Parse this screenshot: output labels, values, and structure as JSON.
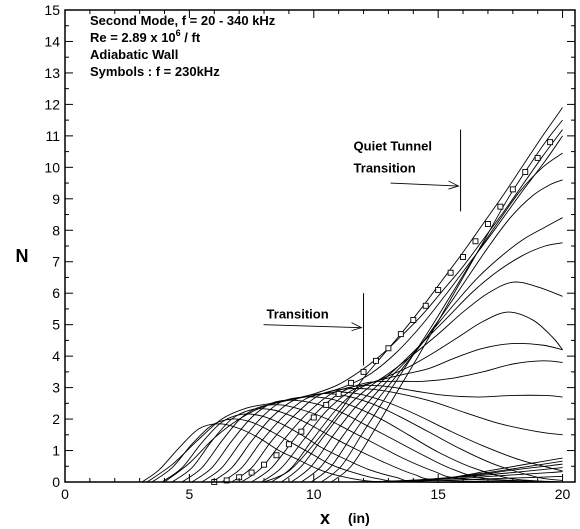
{
  "chart_data": {
    "type": "line",
    "xlabel": "x",
    "xunit": "(in)",
    "ylabel": "N",
    "xlim": [
      0,
      20.5
    ],
    "ylim": [
      0,
      15
    ],
    "xticks": [
      0,
      5,
      10,
      15,
      20
    ],
    "yticks": [
      0,
      1,
      2,
      3,
      4,
      5,
      6,
      7,
      8,
      9,
      10,
      11,
      12,
      13,
      14,
      15
    ],
    "grid": false,
    "legend_text": {
      "line1_prefix": "Second Mode, f = 20 - 340 kHz",
      "re_prefix": "Re = 2.89 x 10",
      "re_exp": "6",
      "re_suffix": " / ft",
      "line3": "Adiabatic Wall",
      "line4": "Symbols : f = 230kHz"
    },
    "annotations": [
      {
        "text": "Transition",
        "x": 12.0
      },
      {
        "line1": "Quiet Tunnel",
        "line2": "Transition",
        "x": 15.9
      }
    ],
    "symbol_series": {
      "name": "f = 230kHz",
      "marker": "square",
      "x": [
        6.0,
        6.5,
        7.0,
        7.5,
        8.0,
        8.5,
        9.0,
        9.5,
        10.0,
        10.5,
        11.0,
        11.5,
        12.0,
        12.5,
        13.0,
        13.5,
        14.0,
        14.5,
        15.0,
        15.5,
        16.0,
        16.5,
        17.0,
        17.5,
        18.0,
        18.5,
        19.0,
        19.5
      ],
      "y": [
        0.0,
        0.05,
        0.15,
        0.3,
        0.55,
        0.85,
        1.2,
        1.6,
        2.05,
        2.45,
        2.8,
        3.15,
        3.5,
        3.85,
        4.25,
        4.7,
        5.15,
        5.6,
        6.1,
        6.65,
        7.15,
        7.65,
        8.2,
        8.75,
        9.3,
        9.85,
        10.3,
        10.8
      ]
    },
    "series": [
      {
        "x": [
          3.1,
          3.8,
          4.6,
          5.4,
          6.2,
          7.0,
          7.8,
          8.6,
          9.4,
          10.2,
          11.0,
          12.0,
          13.0,
          15.0,
          20.0
        ],
        "y": [
          0,
          0.4,
          1.1,
          1.7,
          1.85,
          1.7,
          1.4,
          1.0,
          0.7,
          0.4,
          0.2,
          0.05,
          0,
          0,
          0
        ]
      },
      {
        "x": [
          3.5,
          4.3,
          5.1,
          5.9,
          6.7,
          7.5,
          8.3,
          9.1,
          9.9,
          10.7,
          11.6,
          12.6,
          14.0,
          20.0
        ],
        "y": [
          0,
          0.45,
          1.2,
          1.8,
          2.0,
          1.9,
          1.6,
          1.25,
          0.9,
          0.55,
          0.3,
          0.1,
          0,
          0
        ]
      },
      {
        "x": [
          3.9,
          4.7,
          5.5,
          6.3,
          7.1,
          7.9,
          8.7,
          9.5,
          10.3,
          11.2,
          12.2,
          13.3,
          14.5,
          20.0
        ],
        "y": [
          0,
          0.45,
          1.25,
          1.9,
          2.15,
          2.1,
          1.85,
          1.5,
          1.1,
          0.75,
          0.4,
          0.15,
          0,
          0
        ]
      },
      {
        "x": [
          4.3,
          5.1,
          5.9,
          6.7,
          7.5,
          8.3,
          9.1,
          9.9,
          10.8,
          11.8,
          12.9,
          14.0,
          15.2,
          20.0
        ],
        "y": [
          0,
          0.45,
          1.3,
          2.0,
          2.3,
          2.3,
          2.1,
          1.8,
          1.4,
          1.0,
          0.6,
          0.25,
          0.05,
          0
        ]
      },
      {
        "x": [
          4.7,
          5.5,
          6.3,
          7.1,
          7.9,
          8.7,
          9.5,
          10.4,
          11.4,
          12.5,
          13.6,
          14.8,
          16.0,
          20.0
        ],
        "y": [
          0,
          0.45,
          1.3,
          2.05,
          2.4,
          2.45,
          2.3,
          2.05,
          1.65,
          1.2,
          0.75,
          0.35,
          0.1,
          0
        ]
      },
      {
        "x": [
          5.1,
          5.9,
          6.7,
          7.5,
          8.3,
          9.1,
          10.0,
          11.0,
          12.0,
          13.2,
          14.4,
          15.6,
          17.0,
          20.0
        ],
        "y": [
          0,
          0.45,
          1.3,
          2.05,
          2.5,
          2.6,
          2.5,
          2.25,
          1.85,
          1.35,
          0.85,
          0.4,
          0.1,
          0
        ]
      },
      {
        "x": [
          5.5,
          6.3,
          7.1,
          7.9,
          8.7,
          9.6,
          10.6,
          11.6,
          12.7,
          13.8,
          15.0,
          16.4,
          18.0,
          20.0
        ],
        "y": [
          0,
          0.45,
          1.3,
          2.05,
          2.55,
          2.7,
          2.65,
          2.4,
          2.0,
          1.5,
          0.95,
          0.45,
          0.1,
          0
        ]
      },
      {
        "x": [
          5.9,
          6.7,
          7.5,
          8.3,
          9.2,
          10.2,
          11.2,
          12.3,
          13.4,
          14.6,
          15.9,
          17.3,
          19.0,
          20.0
        ],
        "y": [
          0,
          0.45,
          1.3,
          2.05,
          2.6,
          2.8,
          2.75,
          2.5,
          2.1,
          1.6,
          1.05,
          0.55,
          0.15,
          0.05
        ]
      },
      {
        "x": [
          6.3,
          7.1,
          7.9,
          8.8,
          9.7,
          10.7,
          11.8,
          12.9,
          14.1,
          15.4,
          16.8,
          18.3,
          20.0
        ],
        "y": [
          0,
          0.45,
          1.3,
          2.1,
          2.65,
          2.85,
          2.8,
          2.55,
          2.15,
          1.65,
          1.15,
          0.7,
          0.35
        ]
      },
      {
        "x": [
          6.7,
          7.5,
          8.3,
          9.2,
          10.2,
          11.2,
          12.3,
          13.5,
          14.8,
          16.1,
          17.5,
          19.0,
          20.0
        ],
        "y": [
          0,
          0.45,
          1.3,
          2.1,
          2.75,
          2.95,
          2.95,
          2.8,
          2.55,
          2.2,
          1.85,
          1.6,
          1.5
        ]
      },
      {
        "x": [
          7.1,
          7.9,
          8.8,
          9.7,
          10.7,
          11.7,
          12.8,
          14.0,
          15.3,
          16.6,
          18.0,
          19.3,
          20.0
        ],
        "y": [
          0,
          0.45,
          1.35,
          2.15,
          2.8,
          3.05,
          3.05,
          2.9,
          2.75,
          2.7,
          2.75,
          2.75,
          2.7
        ]
      },
      {
        "x": [
          7.5,
          8.3,
          9.2,
          10.1,
          11.1,
          12.1,
          13.2,
          14.4,
          15.6,
          16.8,
          18.0,
          19.2,
          20.0
        ],
        "y": [
          0,
          0.45,
          1.35,
          2.2,
          2.85,
          3.15,
          3.2,
          3.2,
          3.3,
          3.5,
          3.75,
          3.85,
          3.8
        ]
      },
      {
        "x": [
          7.9,
          8.7,
          9.6,
          10.5,
          11.5,
          12.5,
          13.5,
          14.6,
          15.7,
          16.8,
          18.0,
          19.2,
          20.0
        ],
        "y": [
          0,
          0.45,
          1.35,
          2.25,
          2.9,
          3.2,
          3.4,
          3.6,
          3.95,
          4.25,
          4.4,
          4.35,
          4.2
        ]
      },
      {
        "x": [
          8.3,
          9.1,
          10.0,
          10.9,
          11.8,
          12.8,
          13.8,
          14.8,
          15.8,
          16.8,
          17.8,
          18.8,
          19.6,
          20.0
        ],
        "y": [
          0,
          0.45,
          1.4,
          2.3,
          2.95,
          3.3,
          3.65,
          4.1,
          4.6,
          5.1,
          5.4,
          5.15,
          4.6,
          4.2
        ]
      },
      {
        "x": [
          8.7,
          9.5,
          10.4,
          11.3,
          12.2,
          13.1,
          14.0,
          15.0,
          16.0,
          17.0,
          18.0,
          19.0,
          20.0
        ],
        "y": [
          0,
          0.5,
          1.45,
          2.35,
          3.0,
          3.5,
          4.05,
          4.7,
          5.4,
          6.0,
          6.35,
          6.2,
          5.9
        ]
      },
      {
        "x": [
          9.1,
          9.9,
          10.8,
          11.7,
          12.6,
          13.5,
          14.4,
          15.4,
          16.4,
          17.4,
          18.4,
          19.3,
          20.0
        ],
        "y": [
          0,
          0.5,
          1.5,
          2.4,
          3.1,
          3.75,
          4.45,
          5.25,
          6.05,
          6.7,
          7.2,
          7.5,
          7.6
        ]
      },
      {
        "x": [
          9.5,
          10.3,
          11.2,
          12.1,
          13.0,
          13.9,
          14.8,
          15.7,
          16.6,
          17.5,
          18.4,
          19.3,
          20.0
        ],
        "y": [
          0,
          0.5,
          1.5,
          2.45,
          3.25,
          4.0,
          4.85,
          5.7,
          6.5,
          7.15,
          7.7,
          8.1,
          8.4
        ]
      },
      {
        "x": [
          9.9,
          10.7,
          11.6,
          12.5,
          13.4,
          14.3,
          15.2,
          16.1,
          17.0,
          17.9,
          18.8,
          19.5,
          20.0
        ],
        "y": [
          0,
          0.5,
          1.55,
          2.55,
          3.45,
          4.35,
          5.35,
          6.4,
          7.45,
          8.4,
          9.1,
          9.45,
          9.6
        ]
      },
      {
        "x": [
          10.3,
          11.1,
          12.0,
          12.9,
          13.8,
          14.7,
          15.6,
          16.5,
          17.4,
          18.3,
          19.2,
          20.0
        ],
        "y": [
          0,
          0.5,
          1.6,
          2.7,
          3.8,
          4.9,
          6.05,
          7.2,
          8.25,
          9.25,
          10.0,
          10.45
        ]
      },
      {
        "x": [
          10.7,
          11.5,
          12.4,
          13.3,
          14.2,
          15.1,
          16.0,
          16.9,
          17.8,
          18.7,
          19.4,
          20.0
        ],
        "y": [
          0,
          0.5,
          1.6,
          2.8,
          4.0,
          5.25,
          6.5,
          7.75,
          9.0,
          10.1,
          10.9,
          11.5
        ]
      },
      {
        "x": [
          3.3,
          4.3,
          5.3,
          6.3,
          7.3,
          8.3,
          9.3,
          10.3,
          11.3,
          12.3,
          13.3,
          14.3,
          15.3,
          16.3,
          17.3,
          18.3,
          19.3,
          20.0
        ],
        "y": [
          0,
          0.55,
          1.3,
          2.0,
          2.35,
          2.5,
          2.65,
          2.8,
          3.05,
          3.45,
          4.1,
          4.95,
          5.95,
          7.0,
          8.05,
          9.15,
          10.2,
          11.0
        ]
      },
      {
        "x": [
          4.0,
          5.0,
          6.0,
          7.0,
          8.0,
          9.0,
          10.0,
          11.0,
          12.0,
          12.8,
          13.6,
          14.4,
          15.2,
          16.0,
          16.8,
          17.6,
          18.4,
          19.2,
          20.0
        ],
        "y": [
          0,
          0.6,
          1.4,
          2.0,
          2.4,
          2.6,
          2.8,
          3.1,
          3.6,
          4.1,
          4.7,
          5.35,
          6.1,
          6.85,
          7.7,
          8.55,
          9.45,
          10.35,
          11.2
        ]
      },
      {
        "x": [
          8.0,
          9.0,
          10.0,
          11.0,
          12.0,
          12.8,
          13.6,
          14.4,
          15.2,
          16.0,
          16.8,
          17.6,
          18.4,
          19.2,
          20.0
        ],
        "y": [
          0,
          0.35,
          1.2,
          2.2,
          3.3,
          4.05,
          4.8,
          5.6,
          6.45,
          7.3,
          8.2,
          9.1,
          10.05,
          11.0,
          11.9
        ]
      },
      {
        "x": [
          11.5,
          13.0,
          15.0,
          17.0,
          19.0,
          20.0
        ],
        "y": [
          0,
          0.02,
          0.05,
          0.1,
          0.15,
          0.18
        ]
      },
      {
        "x": [
          12.0,
          13.5,
          15.5,
          17.5,
          19.5,
          20.0
        ],
        "y": [
          0,
          0.04,
          0.1,
          0.2,
          0.3,
          0.33
        ]
      },
      {
        "x": [
          12.5,
          14.0,
          16.0,
          18.0,
          19.5,
          20.0
        ],
        "y": [
          0,
          0.06,
          0.16,
          0.3,
          0.42,
          0.46
        ]
      },
      {
        "x": [
          13.0,
          14.5,
          16.5,
          18.0,
          19.5,
          20.0
        ],
        "y": [
          0,
          0.08,
          0.22,
          0.38,
          0.52,
          0.57
        ]
      },
      {
        "x": [
          13.5,
          15.0,
          17.0,
          18.5,
          20.0
        ],
        "y": [
          0,
          0.1,
          0.3,
          0.48,
          0.66
        ]
      },
      {
        "x": [
          14.0,
          15.5,
          17.0,
          18.5,
          20.0
        ],
        "y": [
          0,
          0.14,
          0.35,
          0.56,
          0.76
        ]
      }
    ]
  }
}
